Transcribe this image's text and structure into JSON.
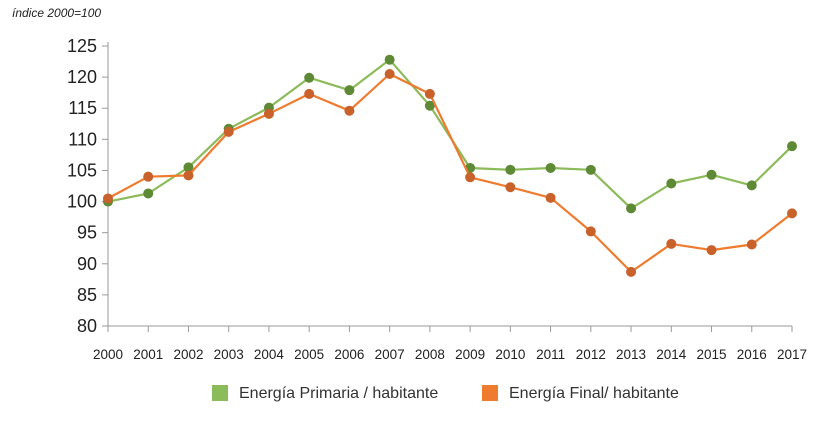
{
  "chart_data": {
    "type": "line",
    "title": "",
    "unit_label": "índice 2000=100",
    "xlabel": "",
    "ylabel": "",
    "ylim": [
      80,
      125
    ],
    "yticks": [
      80,
      85,
      90,
      95,
      100,
      105,
      110,
      115,
      120,
      125
    ],
    "categories": [
      "2000",
      "2001",
      "2002",
      "2003",
      "2004",
      "2005",
      "2006",
      "2007",
      "2008",
      "2009",
      "2010",
      "2011",
      "2012",
      "2013",
      "2014",
      "2015",
      "2016",
      "2017"
    ],
    "series": [
      {
        "name": "Energía Primaria / habitante",
        "line_color": "#8cbb5a",
        "marker_color": "#5e8a36",
        "values": [
          100.0,
          101.3,
          105.5,
          111.7,
          115.1,
          119.9,
          117.9,
          122.8,
          115.4,
          105.4,
          105.1,
          105.4,
          105.1,
          98.9,
          102.9,
          104.3,
          102.6,
          108.9
        ]
      },
      {
        "name": "Energía Final/ habitante",
        "line_color": "#ee7b2e",
        "marker_color": "#c8612a",
        "values": [
          100.5,
          104.0,
          104.2,
          111.2,
          114.1,
          117.3,
          114.6,
          120.5,
          117.3,
          103.9,
          102.3,
          100.6,
          95.2,
          88.7,
          93.2,
          92.2,
          93.1,
          98.1
        ]
      }
    ],
    "grid": false,
    "legend_position": "bottom-center"
  }
}
